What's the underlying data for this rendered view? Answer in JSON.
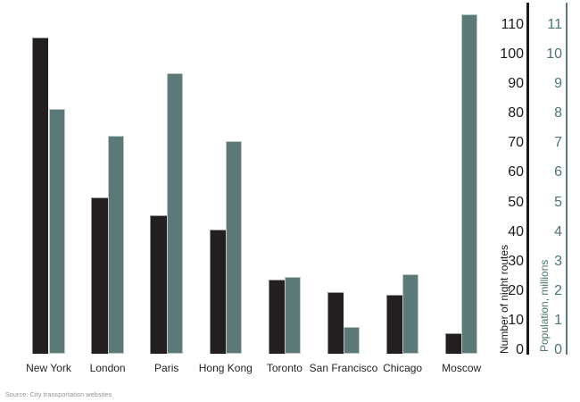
{
  "chart_data": {
    "type": "bar",
    "title": "",
    "categories": [
      "New York",
      "London",
      "Paris",
      "Hong Kong",
      "Toronto",
      "San Francisco",
      "Chicago",
      "Moscow"
    ],
    "series": [
      {
        "name": "Number of night routes",
        "axis": "routes",
        "color": "#231f20",
        "values": [
          107,
          53,
          47,
          42,
          25,
          21,
          20,
          7
        ]
      },
      {
        "name": "Population, millions",
        "axis": "population",
        "color": "#5a7977",
        "values": [
          8.3,
          7.4,
          9.5,
          7.2,
          2.6,
          0.9,
          2.7,
          11.5
        ]
      }
    ],
    "axes": {
      "routes": {
        "label": "Number of night routes",
        "ticks": [
          0,
          10,
          20,
          30,
          40,
          50,
          60,
          70,
          80,
          90,
          100,
          110
        ],
        "range": [
          0,
          119
        ],
        "color": "#1a1a1a",
        "position": "right-inner"
      },
      "population": {
        "label": "Population, millions",
        "ticks": [
          0,
          1,
          2,
          3,
          4,
          5,
          6,
          7,
          8,
          9,
          10,
          11
        ],
        "range": [
          0,
          11.9
        ],
        "color": "#4d7471",
        "position": "right-outer"
      }
    },
    "grid": false,
    "legend": "none",
    "source_note": "Source: City transportation websites"
  }
}
